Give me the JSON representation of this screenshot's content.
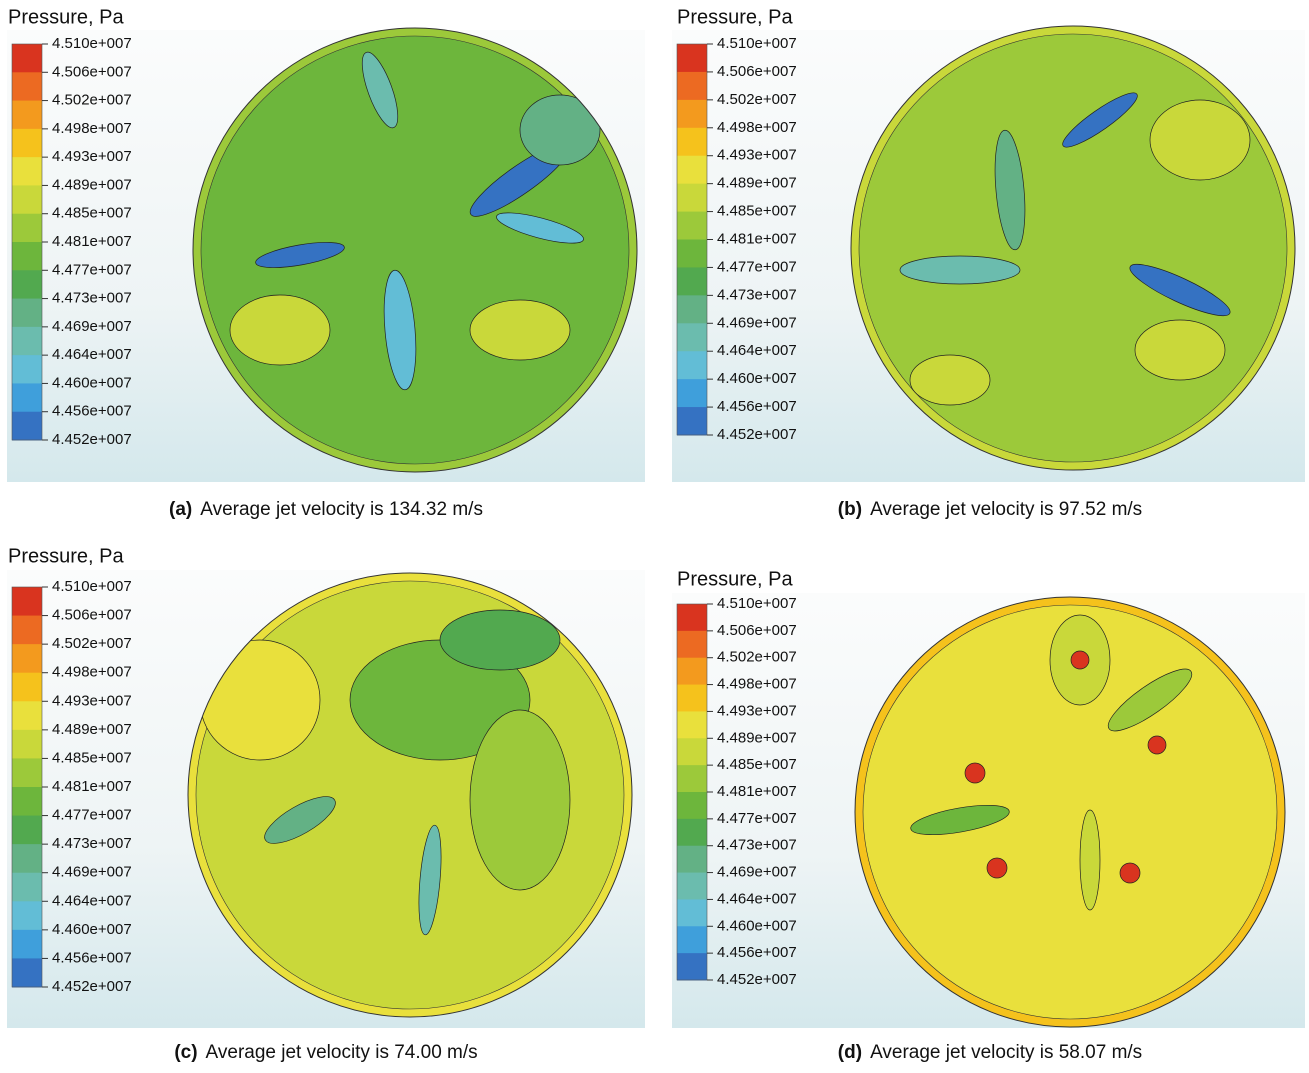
{
  "panels": [
    {
      "legend_title": "Pressure, Pa",
      "legend_labels": [
        "4.510e+007",
        "4.506e+007",
        "4.502e+007",
        "4.498e+007",
        "4.493e+007",
        "4.489e+007",
        "4.485e+007",
        "4.481e+007",
        "4.477e+007",
        "4.473e+007",
        "4.469e+007",
        "4.464e+007",
        "4.460e+007",
        "4.456e+007",
        "4.452e+007"
      ],
      "caption_label": "(a)",
      "caption_text": "Average jet velocity is 134.32 m/s"
    },
    {
      "legend_title": "Pressure, Pa",
      "legend_labels": [
        "4.510e+007",
        "4.506e+007",
        "4.502e+007",
        "4.498e+007",
        "4.493e+007",
        "4.489e+007",
        "4.485e+007",
        "4.481e+007",
        "4.477e+007",
        "4.473e+007",
        "4.469e+007",
        "4.464e+007",
        "4.460e+007",
        "4.456e+007",
        "4.452e+007"
      ],
      "caption_label": "(b)",
      "caption_text": "Average jet velocity is 97.52 m/s"
    },
    {
      "legend_title": "Pressure, Pa",
      "legend_labels": [
        "4.510e+007",
        "4.506e+007",
        "4.502e+007",
        "4.498e+007",
        "4.493e+007",
        "4.489e+007",
        "4.485e+007",
        "4.481e+007",
        "4.477e+007",
        "4.473e+007",
        "4.469e+007",
        "4.464e+007",
        "4.460e+007",
        "4.456e+007",
        "4.452e+007"
      ],
      "caption_label": "(c)",
      "caption_text": "Average jet velocity is 74.00 m/s"
    },
    {
      "legend_title": "Pressure, Pa",
      "legend_labels": [
        "4.510e+007",
        "4.506e+007",
        "4.502e+007",
        "4.498e+007",
        "4.493e+007",
        "4.489e+007",
        "4.485e+007",
        "4.481e+007",
        "4.477e+007",
        "4.473e+007",
        "4.469e+007",
        "4.464e+007",
        "4.460e+007",
        "4.456e+007",
        "4.452e+007"
      ],
      "caption_label": "(d)",
      "caption_text": "Average jet velocity is 58.07 m/s"
    }
  ],
  "legend_colors": [
    "#d9341f",
    "#ec6a22",
    "#f39a1e",
    "#f5c21c",
    "#e9e03c",
    "#c9d83a",
    "#9cc93a",
    "#6db63c",
    "#52a94f",
    "#63b185",
    "#6bbcae",
    "#62bdd6",
    "#3f9fdb",
    "#3572c2",
    "#2a4aa6"
  ]
}
